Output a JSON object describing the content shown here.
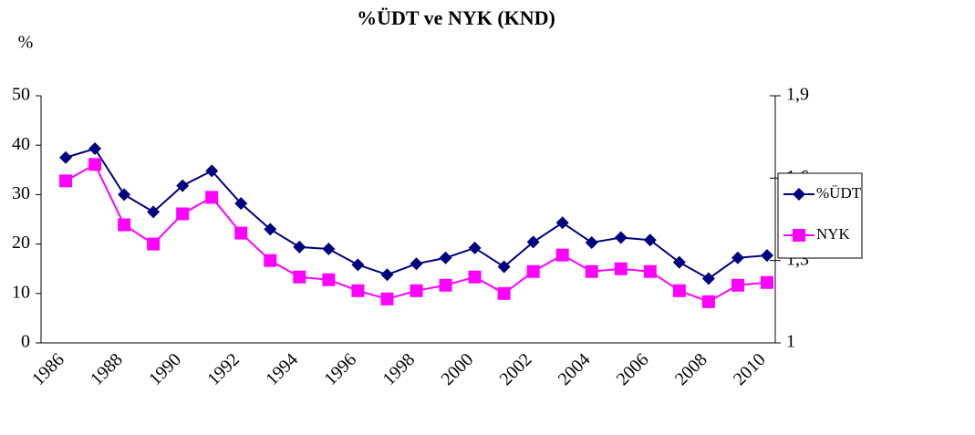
{
  "chart_data": {
    "type": "line",
    "title": "%ÜDT ve NYK (KND)",
    "y_label": "%",
    "categories": [
      "1986",
      null,
      "1988",
      null,
      "1990",
      null,
      "1992",
      null,
      "1994",
      null,
      "1996",
      null,
      "1998",
      null,
      "2000",
      null,
      "2002",
      null,
      "2004",
      null,
      "2006",
      null,
      "2008",
      null,
      "2010"
    ],
    "series": [
      {
        "name": "%ÜDT",
        "color": "#000080",
        "marker": "diamond",
        "values": [
          37.5,
          39.3,
          30,
          26.5,
          31.8,
          34.8,
          28.2,
          23,
          19.4,
          19,
          15.8,
          13.8,
          16,
          17.2,
          19.2,
          15.4,
          20.4,
          24.3,
          20.3,
          21.3,
          20.8,
          16.3,
          13,
          17.2,
          17.7
        ]
      },
      {
        "name": "NYK",
        "color": "#ff00ff",
        "marker": "square",
        "axis": "y2",
        "values": [
          1.59,
          1.65,
          1.43,
          1.36,
          1.47,
          1.53,
          1.4,
          1.3,
          1.24,
          1.23,
          1.19,
          1.16,
          1.19,
          1.21,
          1.24,
          1.18,
          1.26,
          1.32,
          1.26,
          1.27,
          1.26,
          1.19,
          1.15,
          1.21,
          1.22
        ]
      }
    ],
    "ylim": [
      0,
      50
    ],
    "yticks": [
      0,
      10,
      20,
      30,
      40,
      50
    ],
    "y2lim": [
      1,
      1.9
    ],
    "y2ticks": [
      1,
      {
        "value": 1.3,
        "label": "1,3"
      },
      {
        "value": 1.6,
        "label": "1,6"
      },
      {
        "value": 1.9,
        "label": "1,9"
      }
    ],
    "legend": "right",
    "grid": false
  }
}
